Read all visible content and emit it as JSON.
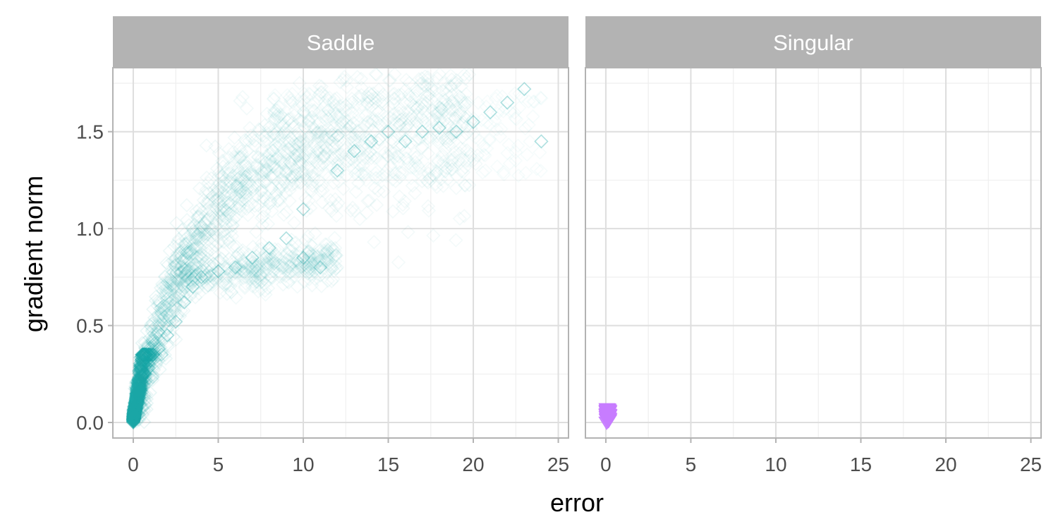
{
  "chart_data": {
    "type": "scatter",
    "title": "",
    "xlabel": "error",
    "ylabel": "gradient norm",
    "xlim": [
      -1.2,
      25.6
    ],
    "ylim": [
      -0.08,
      1.83
    ],
    "x_ticks": [
      0,
      5,
      10,
      15,
      20,
      25
    ],
    "y_ticks": [
      0.0,
      0.5,
      1.0,
      1.5
    ],
    "x_tick_labels": [
      "0",
      "5",
      "10",
      "15",
      "20",
      "25"
    ],
    "y_tick_labels": [
      "0.0",
      "0.5",
      "1.0",
      "1.5"
    ],
    "grid": true,
    "legend": "none",
    "colors": {
      "saddle": "#1aa6a6",
      "singular": "#c77cff",
      "strip": "#b3b3b3",
      "panel_border": "#b3b3b3",
      "grid_major": "#dedede",
      "grid_minor": "#efefef"
    },
    "facets": [
      {
        "label": "Saddle",
        "marker": "open-diamond",
        "color": "#1aa6a6",
        "description_points_mostly_low_opacity": true,
        "points": [
          [
            0,
            0
          ],
          [
            0.1,
            0.02
          ],
          [
            0.2,
            0.05
          ],
          [
            0.3,
            0.1
          ],
          [
            0.4,
            0.15
          ],
          [
            0.5,
            0.2
          ],
          [
            0.7,
            0.25
          ],
          [
            1,
            0.32
          ],
          [
            1.5,
            0.38
          ],
          [
            2,
            0.45
          ],
          [
            2.5,
            0.52
          ],
          [
            3,
            0.62
          ],
          [
            3.5,
            0.7
          ],
          [
            4,
            0.75
          ],
          [
            5,
            0.78
          ],
          [
            6,
            0.8
          ],
          [
            7,
            0.85
          ],
          [
            8,
            0.9
          ],
          [
            9,
            0.95
          ],
          [
            10,
            1.1
          ],
          [
            10,
            0.85
          ],
          [
            11,
            0.8
          ],
          [
            12,
            1.3
          ],
          [
            13,
            1.4
          ],
          [
            14,
            1.45
          ],
          [
            15,
            1.5
          ],
          [
            16,
            1.45
          ],
          [
            17,
            1.5
          ],
          [
            18,
            1.52
          ],
          [
            19,
            1.5
          ],
          [
            20,
            1.55
          ],
          [
            21,
            1.6
          ],
          [
            22,
            1.65
          ],
          [
            23,
            1.72
          ],
          [
            24,
            1.45
          ]
        ]
      },
      {
        "label": "Singular",
        "marker": "filled-triangle-down",
        "color": "#c77cff",
        "points": [
          [
            0.05,
            0.0
          ],
          [
            0.1,
            0.01
          ],
          [
            0.08,
            0.02
          ],
          [
            0.12,
            0.03
          ],
          [
            0.05,
            0.04
          ],
          [
            0.1,
            0.05
          ],
          [
            0.15,
            0.06
          ],
          [
            0.06,
            0.07
          ]
        ]
      }
    ]
  }
}
